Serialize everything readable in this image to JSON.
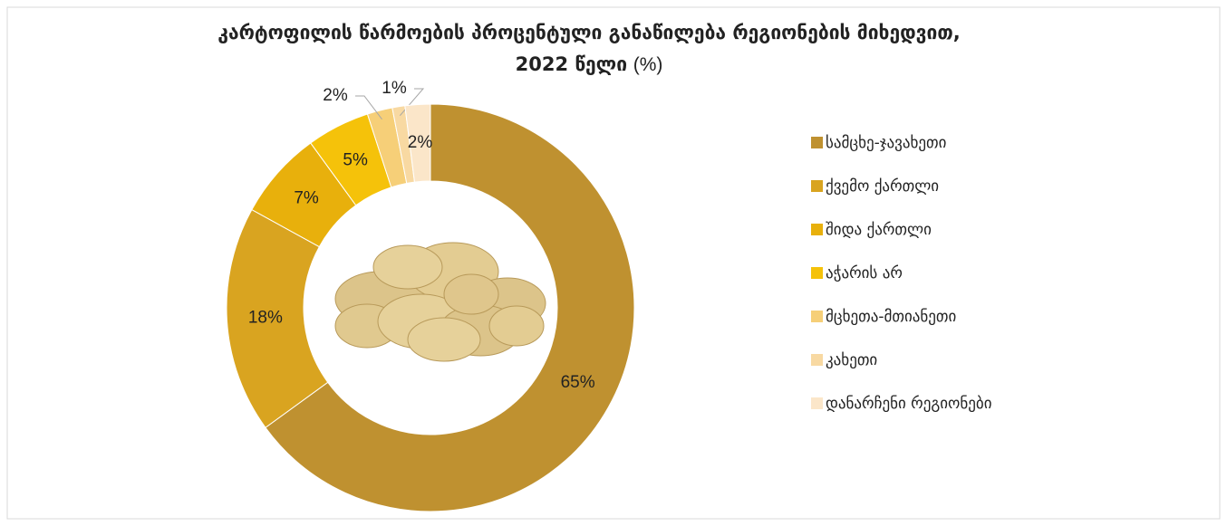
{
  "chart_data": {
    "type": "donut",
    "title": "კარტოფილის წარმოების პროცენტული განაწილება რეგიონების მიხედვით,",
    "title_line2": "2022 წელი",
    "title_unit": "(%)",
    "categories": [
      "სამცხე-ჯავახეთი",
      "ქვემო ქართლი",
      "შიდა ქართლი",
      "აჭარის არ",
      "მცხეთა-მთიანეთი",
      "კახეთი",
      "დანარჩენი რეგიონები"
    ],
    "values": [
      65,
      18,
      7,
      5,
      2,
      1,
      2
    ],
    "value_labels": [
      "65%",
      "18%",
      "7%",
      "5%",
      "2%",
      "1%",
      "2%"
    ],
    "colors": [
      "#bf9130",
      "#d9a420",
      "#e8b00c",
      "#f5c20a",
      "#f6cf78",
      "#f8d9a2",
      "#fbe6c9"
    ],
    "legend": "right"
  }
}
